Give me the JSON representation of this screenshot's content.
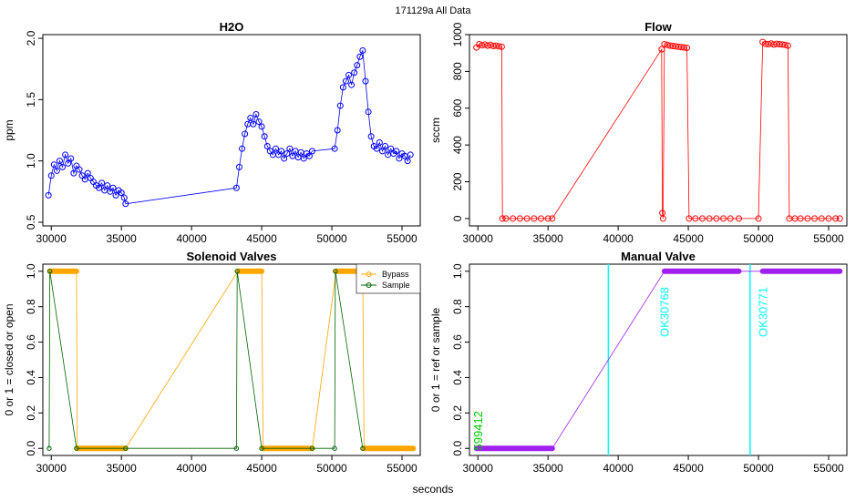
{
  "page_title": "171129a   All Data",
  "common_xlabel": "seconds",
  "colors": {
    "h2o": "#0000ff",
    "flow": "#ff0000",
    "bypass": "#ffa500",
    "sample": "#006400",
    "manual": "#a020f0",
    "marker_line": "#00ffff",
    "green_label": "#00cc00"
  },
  "chart_data": [
    {
      "id": "h2o",
      "type": "scatter",
      "title": "H2O",
      "ylabel": "ppm",
      "xlim": [
        29400,
        56300
      ],
      "ylim": [
        0.47,
        2.03
      ],
      "xticks": [
        30000,
        35000,
        40000,
        45000,
        50000,
        55000
      ],
      "yticks": [
        0.5,
        1.0,
        1.5,
        2.0
      ],
      "ytick_labels": [
        "0.5",
        "1.0",
        "1.5",
        "2.0"
      ],
      "series": [
        {
          "color": "#0000ff",
          "points": [
            [
              29800,
              0.72
            ],
            [
              30000,
              0.88
            ],
            [
              30200,
              0.97
            ],
            [
              30400,
              0.92
            ],
            [
              30600,
              1.0
            ],
            [
              30800,
              0.95
            ],
            [
              31000,
              1.05
            ],
            [
              31200,
              0.98
            ],
            [
              31400,
              1.02
            ],
            [
              31600,
              0.9
            ],
            [
              31800,
              0.96
            ],
            [
              32000,
              0.93
            ],
            [
              32200,
              0.88
            ],
            [
              32400,
              0.85
            ],
            [
              32600,
              0.9
            ],
            [
              32800,
              0.86
            ],
            [
              33000,
              0.83
            ],
            [
              33200,
              0.8
            ],
            [
              33400,
              0.78
            ],
            [
              33600,
              0.82
            ],
            [
              33800,
              0.76
            ],
            [
              34000,
              0.8
            ],
            [
              34200,
              0.75
            ],
            [
              34400,
              0.78
            ],
            [
              34600,
              0.72
            ],
            [
              34800,
              0.76
            ],
            [
              35000,
              0.74
            ],
            [
              35200,
              0.7
            ],
            [
              35300,
              0.65
            ],
            [
              43200,
              0.78
            ],
            [
              43400,
              0.95
            ],
            [
              43600,
              1.1
            ],
            [
              43800,
              1.22
            ],
            [
              44000,
              1.3
            ],
            [
              44200,
              1.35
            ],
            [
              44400,
              1.3
            ],
            [
              44600,
              1.38
            ],
            [
              44800,
              1.32
            ],
            [
              45000,
              1.28
            ],
            [
              45200,
              1.2
            ],
            [
              45400,
              1.12
            ],
            [
              45600,
              1.08
            ],
            [
              45800,
              1.05
            ],
            [
              46000,
              1.1
            ],
            [
              46200,
              1.05
            ],
            [
              46400,
              1.08
            ],
            [
              46600,
              1.02
            ],
            [
              46800,
              1.06
            ],
            [
              47000,
              1.1
            ],
            [
              47200,
              1.04
            ],
            [
              47400,
              1.08
            ],
            [
              47600,
              1.03
            ],
            [
              47800,
              1.07
            ],
            [
              48000,
              1.02
            ],
            [
              48200,
              1.06
            ],
            [
              48400,
              1.04
            ],
            [
              48600,
              1.08
            ],
            [
              50200,
              1.1
            ],
            [
              50400,
              1.25
            ],
            [
              50600,
              1.45
            ],
            [
              50800,
              1.6
            ],
            [
              51000,
              1.65
            ],
            [
              51200,
              1.7
            ],
            [
              51400,
              1.62
            ],
            [
              51600,
              1.72
            ],
            [
              51800,
              1.78
            ],
            [
              52000,
              1.85
            ],
            [
              52200,
              1.9
            ],
            [
              52400,
              1.65
            ],
            [
              52600,
              1.4
            ],
            [
              52800,
              1.2
            ],
            [
              53000,
              1.12
            ],
            [
              53200,
              1.1
            ],
            [
              53400,
              1.15
            ],
            [
              53600,
              1.08
            ],
            [
              53800,
              1.12
            ],
            [
              54000,
              1.05
            ],
            [
              54200,
              1.1
            ],
            [
              54400,
              1.06
            ],
            [
              54600,
              1.08
            ],
            [
              54800,
              1.02
            ],
            [
              55000,
              1.06
            ],
            [
              55200,
              1.04
            ],
            [
              55400,
              1.0
            ],
            [
              55600,
              1.05
            ]
          ]
        }
      ]
    },
    {
      "id": "flow",
      "type": "scatter",
      "title": "Flow",
      "ylabel": "sccm",
      "xlim": [
        29400,
        56300
      ],
      "ylim": [
        -40,
        1000
      ],
      "xticks": [
        30000,
        35000,
        40000,
        45000,
        50000,
        55000
      ],
      "yticks": [
        0,
        200,
        400,
        600,
        800,
        1000
      ],
      "ytick_labels": [
        "0",
        "200",
        "400",
        "600",
        "800",
        "1000"
      ],
      "series": [
        {
          "color": "#ff0000",
          "points": [
            [
              29900,
              930
            ],
            [
              30100,
              948
            ],
            [
              30300,
              942
            ],
            [
              30500,
              946
            ],
            [
              30700,
              940
            ],
            [
              30900,
              944
            ],
            [
              31100,
              938
            ],
            [
              31300,
              940
            ],
            [
              31500,
              936
            ],
            [
              31700,
              934
            ],
            [
              31750,
              0
            ],
            [
              32000,
              0
            ],
            [
              32500,
              0
            ],
            [
              33000,
              0
            ],
            [
              33500,
              0
            ],
            [
              34000,
              0
            ],
            [
              34500,
              0
            ],
            [
              35000,
              0
            ],
            [
              35300,
              0
            ],
            [
              43100,
              920
            ],
            [
              43150,
              30
            ],
            [
              43200,
              0
            ],
            [
              43300,
              948
            ],
            [
              43500,
              944
            ],
            [
              43700,
              940
            ],
            [
              43900,
              938
            ],
            [
              44100,
              936
            ],
            [
              44300,
              934
            ],
            [
              44500,
              932
            ],
            [
              44700,
              930
            ],
            [
              44900,
              928
            ],
            [
              45050,
              0
            ],
            [
              45500,
              0
            ],
            [
              46000,
              0
            ],
            [
              46500,
              0
            ],
            [
              47000,
              0
            ],
            [
              47500,
              0
            ],
            [
              48000,
              0
            ],
            [
              48600,
              0
            ],
            [
              50000,
              0
            ],
            [
              50300,
              960
            ],
            [
              50500,
              950
            ],
            [
              50700,
              948
            ],
            [
              50900,
              952
            ],
            [
              51100,
              946
            ],
            [
              51300,
              950
            ],
            [
              51500,
              948
            ],
            [
              51700,
              946
            ],
            [
              51900,
              944
            ],
            [
              52100,
              940
            ],
            [
              52200,
              0
            ],
            [
              52600,
              0
            ],
            [
              53000,
              0
            ],
            [
              53500,
              0
            ],
            [
              54000,
              0
            ],
            [
              54500,
              0
            ],
            [
              55000,
              0
            ],
            [
              55500,
              0
            ],
            [
              55800,
              0
            ]
          ]
        }
      ]
    },
    {
      "id": "solenoid",
      "type": "line",
      "title": "Solenoid Valves",
      "ylabel": "0 or 1 = closed or open",
      "xlim": [
        29400,
        56300
      ],
      "ylim": [
        -0.04,
        1.04
      ],
      "xticks": [
        30000,
        35000,
        40000,
        45000,
        50000,
        55000
      ],
      "yticks": [
        0.0,
        0.2,
        0.4,
        0.6,
        0.8,
        1.0
      ],
      "ytick_labels": [
        "0.0",
        "0.2",
        "0.4",
        "0.6",
        "0.8",
        "1.0"
      ],
      "legend_position": "top-right",
      "series": [
        {
          "name": "Bypass",
          "color": "#ffa500",
          "segments": [
            {
              "x": [
                29900,
                31800
              ],
              "y": 1
            },
            {
              "x": [
                31850,
                35300
              ],
              "y": 0
            },
            {
              "x": [
                43300,
                45000
              ],
              "y": 1
            },
            {
              "x": [
                45100,
                48600
              ],
              "y": 0
            },
            {
              "x": [
                50300,
                52200
              ],
              "y": 1
            },
            {
              "x": [
                52300,
                55800
              ],
              "y": 0
            }
          ],
          "points": [
            [
              29900,
              1
            ],
            [
              31800,
              1
            ],
            [
              31850,
              0
            ],
            [
              35300,
              0
            ],
            [
              43300,
              1
            ],
            [
              45000,
              1
            ],
            [
              45100,
              0
            ],
            [
              48600,
              0
            ],
            [
              50300,
              1
            ],
            [
              52200,
              1
            ],
            [
              52300,
              0
            ],
            [
              55800,
              0
            ]
          ]
        },
        {
          "name": "Sample",
          "color": "#006400",
          "points": [
            [
              29850,
              0
            ],
            [
              29900,
              1
            ],
            [
              31800,
              0
            ],
            [
              35300,
              0
            ],
            [
              43200,
              0
            ],
            [
              43250,
              1
            ],
            [
              45000,
              0
            ],
            [
              48600,
              0
            ],
            [
              50200,
              0
            ],
            [
              50250,
              1
            ],
            [
              52200,
              0
            ]
          ]
        }
      ]
    },
    {
      "id": "manual",
      "type": "line",
      "title": "Manual Valve",
      "ylabel": "0 or 1 = ref or sample",
      "xlim": [
        29400,
        56300
      ],
      "ylim": [
        -0.04,
        1.04
      ],
      "xticks": [
        30000,
        35000,
        40000,
        45000,
        50000,
        55000
      ],
      "yticks": [
        0.0,
        0.2,
        0.4,
        0.6,
        0.8,
        1.0
      ],
      "ytick_labels": [
        "0.0",
        "0.2",
        "0.4",
        "0.6",
        "0.8",
        "1.0"
      ],
      "series": [
        {
          "color": "#a020f0",
          "segments": [
            {
              "x": [
                29900,
                35300
              ],
              "y": 0
            },
            {
              "x": [
                43300,
                48600
              ],
              "y": 1
            },
            {
              "x": [
                50300,
                55800
              ],
              "y": 1
            }
          ],
          "points": [
            [
              29900,
              0
            ],
            [
              35300,
              0
            ],
            [
              43300,
              1
            ],
            [
              48600,
              1
            ],
            [
              50300,
              1
            ],
            [
              55800,
              1
            ]
          ]
        }
      ],
      "vlines": [
        {
          "x": 39300,
          "color": "#00ffff"
        },
        {
          "x": 49400,
          "color": "#00ffff"
        }
      ],
      "annotations": [
        {
          "text": "599412",
          "x": 30300,
          "y": 0.1,
          "color": "#00cc00"
        },
        {
          "text": "OK30768",
          "x": 43600,
          "y": 0.77,
          "color": "#00ffff"
        },
        {
          "text": "OK30771",
          "x": 50600,
          "y": 0.77,
          "color": "#00ffff"
        }
      ]
    }
  ]
}
